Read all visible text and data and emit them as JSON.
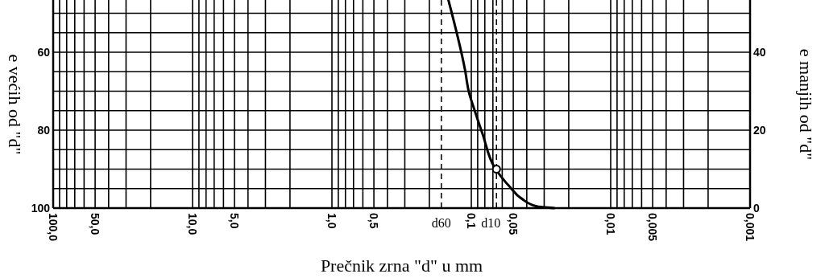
{
  "chart_data": {
    "type": "line",
    "xlabel": "Prečnik zrna \"d\" u mm",
    "ylabel": "e većih od \"d\"",
    "y2label": "e manjih od \"d\"",
    "log": "x",
    "grid": true,
    "marker": "none",
    "line_style": "solid",
    "xlim": [
      100,
      0.001
    ],
    "xticks": [
      {
        "value": 100,
        "label": "100,0"
      },
      {
        "value": 90,
        "label": null
      },
      {
        "value": 80,
        "label": null
      },
      {
        "value": 70,
        "label": null
      },
      {
        "value": 60,
        "label": null
      },
      {
        "value": 50,
        "label": "50,0"
      },
      {
        "value": 40,
        "label": null
      },
      {
        "value": 30,
        "label": null
      },
      {
        "value": 20,
        "label": null
      },
      {
        "value": 10,
        "label": "10,0"
      },
      {
        "value": 9,
        "label": null
      },
      {
        "value": 8,
        "label": null
      },
      {
        "value": 7,
        "label": null
      },
      {
        "value": 6,
        "label": null
      },
      {
        "value": 5,
        "label": "5,0"
      },
      {
        "value": 4,
        "label": null
      },
      {
        "value": 3,
        "label": null
      },
      {
        "value": 2,
        "label": null
      },
      {
        "value": 1,
        "label": "1,0"
      },
      {
        "value": 0.9,
        "label": null
      },
      {
        "value": 0.8,
        "label": null
      },
      {
        "value": 0.7,
        "label": null
      },
      {
        "value": 0.6,
        "label": null
      },
      {
        "value": 0.5,
        "label": "0,5"
      },
      {
        "value": 0.4,
        "label": null
      },
      {
        "value": 0.3,
        "label": null
      },
      {
        "value": 0.2,
        "label": null
      },
      {
        "value": 0.1,
        "label": "0,1"
      },
      {
        "value": 0.09,
        "label": null
      },
      {
        "value": 0.08,
        "label": null
      },
      {
        "value": 0.07,
        "label": null
      },
      {
        "value": 0.06,
        "label": null
      },
      {
        "value": 0.05,
        "label": "0,05"
      },
      {
        "value": 0.04,
        "label": null
      },
      {
        "value": 0.03,
        "label": null
      },
      {
        "value": 0.02,
        "label": null
      },
      {
        "value": 0.01,
        "label": "0,01"
      },
      {
        "value": 0.009,
        "label": null
      },
      {
        "value": 0.008,
        "label": null
      },
      {
        "value": 0.007,
        "label": null
      },
      {
        "value": 0.006,
        "label": null
      },
      {
        "value": 0.005,
        "label": "0,005"
      },
      {
        "value": 0.004,
        "label": null
      },
      {
        "value": 0.003,
        "label": null
      },
      {
        "value": 0.002,
        "label": null
      },
      {
        "value": 0.001,
        "label": "0,001"
      }
    ],
    "ylim": [
      100,
      46.6
    ],
    "yticks": [
      {
        "value": 50,
        "label": null
      },
      {
        "value": 55,
        "label": null
      },
      60,
      {
        "value": 65,
        "label": null
      },
      {
        "value": 70,
        "label": null
      },
      {
        "value": 75,
        "label": null
      },
      80,
      {
        "value": 85,
        "label": null
      },
      {
        "value": 90,
        "label": null
      },
      {
        "value": 95,
        "label": null
      },
      100
    ],
    "y2lim": [
      0,
      53.4
    ],
    "y2ticks": [
      0,
      20,
      40
    ],
    "series": [
      {
        "color": "#000000",
        "x": [
          0.146,
          0.111,
          0.104,
          0.0935,
          0.083,
          0.0677,
          0.0528,
          0.0438,
          0.0336,
          0.0254
        ],
        "values": [
          46.6,
          64.5,
          70.3,
          75.5,
          81,
          89.7,
          94.6,
          97.5,
          99.6,
          100
        ]
      },
      {
        "type": "scatter",
        "color": "#000000",
        "marker": "circle",
        "x": [
          0.066
        ],
        "values": [
          90
        ]
      }
    ],
    "ref_lines": [
      {
        "axis": "x",
        "value": 0.164,
        "label": "d60",
        "line_style": "dashed"
      },
      {
        "axis": "x",
        "value": 0.066,
        "label": "d10",
        "line_style": "dashed"
      }
    ]
  }
}
